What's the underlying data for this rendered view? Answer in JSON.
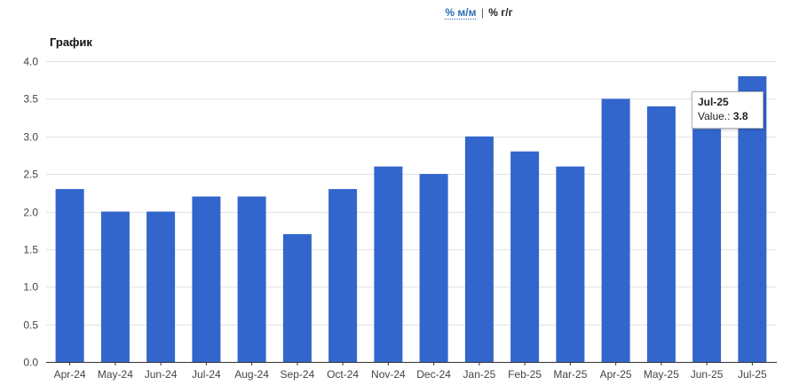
{
  "toggle": {
    "mom_label": "% м/м",
    "separator": "|",
    "yoy_label": "% г/г"
  },
  "chart_title": "График",
  "colors": {
    "bar": "#3366cc",
    "grid": "#e3e3e3",
    "baseline": "#333333"
  },
  "tooltip": {
    "title": "Jul-25",
    "value_label": "Value.:",
    "value": "3.8"
  },
  "chart_data": {
    "type": "bar",
    "title": "График",
    "xlabel": "",
    "ylabel": "",
    "categories": [
      "Apr-24",
      "May-24",
      "Jun-24",
      "Jul-24",
      "Aug-24",
      "Sep-24",
      "Oct-24",
      "Nov-24",
      "Dec-24",
      "Jan-25",
      "Feb-25",
      "Mar-25",
      "Apr-25",
      "May-25",
      "Jun-25",
      "Jul-25"
    ],
    "values": [
      2.3,
      2.0,
      2.0,
      2.2,
      2.2,
      1.7,
      2.3,
      2.6,
      2.5,
      3.0,
      2.8,
      2.6,
      3.5,
      3.4,
      3.1,
      3.8
    ],
    "ylim": [
      0,
      4
    ],
    "yticks": [
      "0.0",
      "0.5",
      "1.0",
      "1.5",
      "2.0",
      "2.5",
      "3.0",
      "3.5",
      "4.0"
    ],
    "grid": true
  }
}
